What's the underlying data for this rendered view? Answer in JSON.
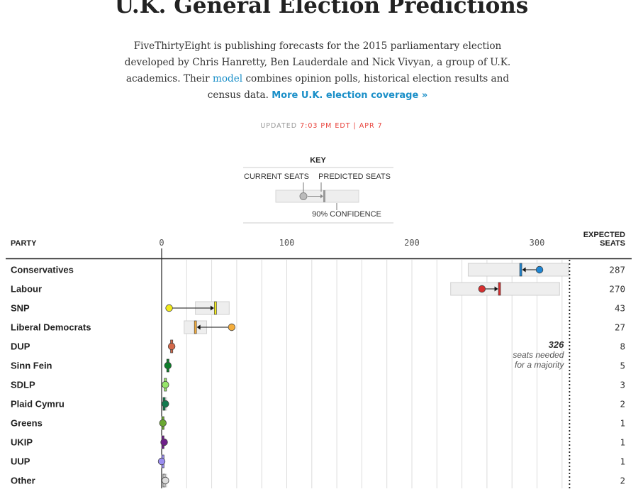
{
  "header": {
    "title": "U.K. General Election Predictions",
    "intro_pre": "FiveThirtyEight is publishing forecasts for the 2015 parliamentary election developed by Chris Hanretty, Ben Lauderdale and Nick Vivyan, a group of U.K. academics. Their ",
    "intro_link": "model",
    "intro_post": " combines opinion polls, historical election results and census data. ",
    "more_link": "More U.K. election coverage »",
    "updated_label": "UPDATED ",
    "updated_time": "7:03 PM EDT | APR 7"
  },
  "key": {
    "title": "KEY",
    "current_label": "CURRENT SEATS",
    "predicted_label": "PREDICTED SEATS",
    "confidence_label": "90% CONFIDENCE"
  },
  "chart_data": {
    "type": "range",
    "party_header": "PARTY",
    "expected_header_1": "EXPECTED",
    "expected_header_2": "SEATS",
    "x_ticks": [
      "0",
      "100",
      "200",
      "300"
    ],
    "xlim": [
      0,
      375
    ],
    "grid": true,
    "majority": {
      "seats": 326,
      "number_label": "326",
      "line1": "seats needed",
      "line2": "for a majority"
    },
    "parties": [
      {
        "name": "Conservatives",
        "current": 302,
        "predicted": 287,
        "low": 245,
        "high": 325,
        "expected": "287",
        "color": "#1f86d3"
      },
      {
        "name": "Labour",
        "current": 256,
        "predicted": 270,
        "low": 231,
        "high": 318,
        "expected": "270",
        "color": "#d62e2e"
      },
      {
        "name": "SNP",
        "current": 6,
        "predicted": 43,
        "low": 27,
        "high": 54,
        "expected": "43",
        "color": "#f2ea1a"
      },
      {
        "name": "Liberal Democrats",
        "current": 56,
        "predicted": 27,
        "low": 18,
        "high": 36,
        "expected": "27",
        "color": "#f4ad3c"
      },
      {
        "name": "DUP",
        "current": 8,
        "predicted": 8,
        "low": 7,
        "high": 9,
        "expected": "8",
        "color": "#d4694a"
      },
      {
        "name": "Sinn Fein",
        "current": 5,
        "predicted": 5,
        "low": 4,
        "high": 6,
        "expected": "5",
        "color": "#0e7d2a"
      },
      {
        "name": "SDLP",
        "current": 3,
        "predicted": 3,
        "low": 2,
        "high": 4,
        "expected": "3",
        "color": "#96e66a"
      },
      {
        "name": "Plaid Cymru",
        "current": 3,
        "predicted": 2,
        "low": 1,
        "high": 4,
        "expected": "2",
        "color": "#127a4f"
      },
      {
        "name": "Greens",
        "current": 1,
        "predicted": 1,
        "low": 0,
        "high": 2,
        "expected": "1",
        "color": "#6aa832"
      },
      {
        "name": "UKIP",
        "current": 2,
        "predicted": 1,
        "low": 0,
        "high": 2,
        "expected": "1",
        "color": "#6f1f8a"
      },
      {
        "name": "UUP",
        "current": 0,
        "predicted": 1,
        "low": 0,
        "high": 2,
        "expected": "1",
        "color": "#9b8ef0"
      },
      {
        "name": "Other",
        "current": 3,
        "predicted": 2,
        "low": 1,
        "high": 4,
        "expected": "2",
        "color": "#dddddd"
      }
    ]
  }
}
